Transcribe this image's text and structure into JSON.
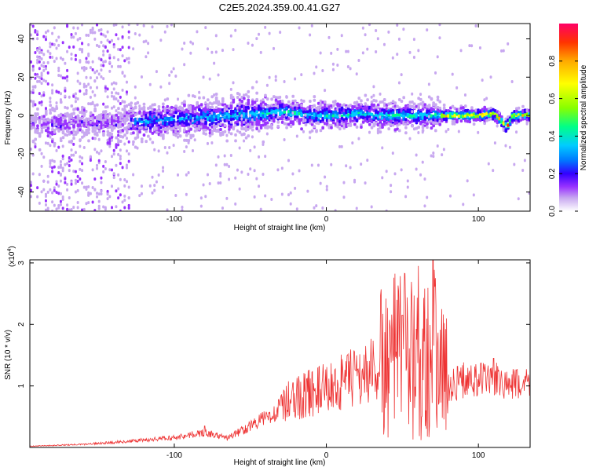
{
  "figure_title": "C2E5.2024.359.00.41.G27",
  "chart_data": [
    {
      "type": "heatmap",
      "xlabel": "Height of straight line (km)",
      "ylabel": "Frequency (Hz)",
      "xlim": [
        -195,
        134
      ],
      "ylim": [
        -50,
        48
      ],
      "x_ticks": [
        -100,
        0,
        100
      ],
      "y_ticks": [
        -40,
        -20,
        0,
        20,
        40
      ],
      "colorbar": {
        "label": "Normalized spectral amplitude",
        "range": [
          0,
          1
        ],
        "ticks": [
          "0.0",
          "0.2",
          "0.4",
          "0.6",
          "0.8"
        ],
        "colors": [
          "#ffffff",
          "#c8a8f0",
          "#9933ff",
          "#3300ff",
          "#0077ff",
          "#00ccff",
          "#00ff88",
          "#88ff00",
          "#ffff00",
          "#ffaa00",
          "#ff3300",
          "#ff0066"
        ]
      },
      "ridge_frequency": [
        [
          -180,
          -5
        ],
        [
          -160,
          -4
        ],
        [
          -140,
          -4
        ],
        [
          -120,
          -3
        ],
        [
          -100,
          -2
        ],
        [
          -80,
          -1
        ],
        [
          -60,
          0
        ],
        [
          -40,
          1
        ],
        [
          -30,
          2
        ],
        [
          -20,
          1
        ],
        [
          -10,
          0
        ],
        [
          0,
          0
        ],
        [
          10,
          0
        ],
        [
          20,
          1
        ],
        [
          30,
          0
        ],
        [
          40,
          0
        ],
        [
          50,
          0
        ],
        [
          60,
          0
        ],
        [
          75,
          0
        ],
        [
          80,
          0
        ],
        [
          90,
          0
        ],
        [
          100,
          0
        ],
        [
          110,
          1
        ],
        [
          118,
          -6
        ],
        [
          122,
          0
        ],
        [
          134,
          0
        ]
      ]
    },
    {
      "type": "line",
      "xlabel": "Height of straight line (km)",
      "ylabel": "SNR (10 * v/v)",
      "y_multiplier": "(x10",
      "y_multiplier_exp": "4",
      "y_multiplier_close": ")",
      "xlim": [
        -195,
        134
      ],
      "ylim": [
        0,
        3.05
      ],
      "x_ticks": [
        -100,
        0,
        100
      ],
      "y_ticks": [
        1,
        2,
        3
      ],
      "color": "#ee3333",
      "envelope": [
        [
          -195,
          0.02
        ],
        [
          -160,
          0.05
        ],
        [
          -130,
          0.1
        ],
        [
          -100,
          0.16
        ],
        [
          -80,
          0.24
        ],
        [
          -65,
          0.15
        ],
        [
          -50,
          0.35
        ],
        [
          -35,
          0.55
        ],
        [
          -25,
          0.75
        ],
        [
          -10,
          0.9
        ],
        [
          0,
          0.95
        ],
        [
          10,
          1.05
        ],
        [
          20,
          1.15
        ],
        [
          30,
          1.25
        ],
        [
          40,
          1.4
        ],
        [
          50,
          1.5
        ],
        [
          60,
          1.6
        ],
        [
          70,
          1.55
        ],
        [
          75,
          1.5
        ],
        [
          80,
          1.0
        ],
        [
          90,
          1.1
        ],
        [
          100,
          1.1
        ],
        [
          110,
          1.1
        ],
        [
          120,
          1.0
        ],
        [
          134,
          1.05
        ]
      ],
      "peaks": [
        [
          70,
          3.05
        ],
        [
          50,
          2.15
        ],
        [
          -22,
          1.05
        ],
        [
          110,
          1.45
        ],
        [
          -80,
          0.35
        ]
      ]
    }
  ]
}
